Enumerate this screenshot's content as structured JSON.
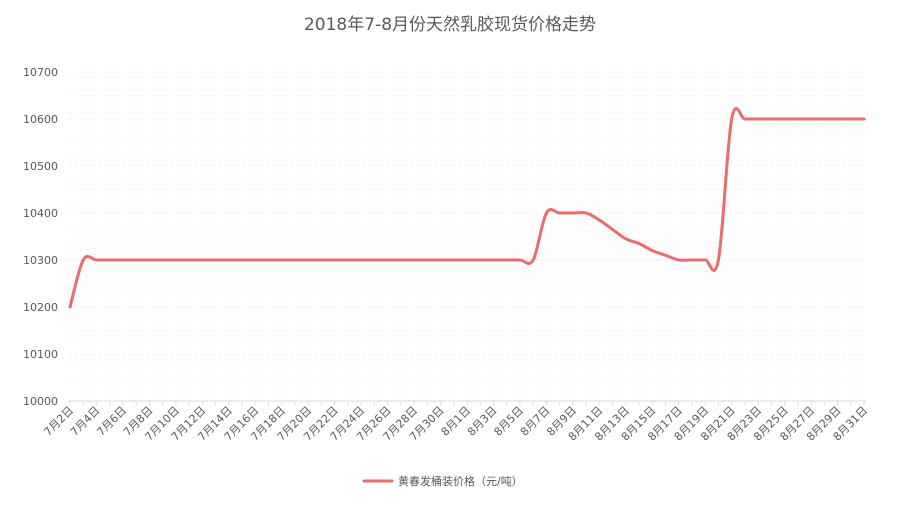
{
  "chart_data": {
    "type": "line",
    "title": "2018年7-8月份天然乳胶现货价格走势",
    "xlabel": "",
    "ylabel": "",
    "ylim": [
      10000,
      10700
    ],
    "yticks": [
      10000,
      10100,
      10200,
      10300,
      10400,
      10500,
      10600,
      10700
    ],
    "grid": "horizontal-dotted",
    "legend_position": "bottom",
    "categories": [
      "7月2日",
      "7月3日",
      "7月4日",
      "7月5日",
      "7月6日",
      "7月7日",
      "7月8日",
      "7月9日",
      "7月10日",
      "7月11日",
      "7月12日",
      "7月13日",
      "7月14日",
      "7月15日",
      "7月16日",
      "7月17日",
      "7月18日",
      "7月19日",
      "7月20日",
      "7月21日",
      "7月22日",
      "7月23日",
      "7月24日",
      "7月25日",
      "7月26日",
      "7月27日",
      "7月28日",
      "7月29日",
      "7月30日",
      "7月31日",
      "8月1日",
      "8月2日",
      "8月3日",
      "8月4日",
      "8月5日",
      "8月6日",
      "8月7日",
      "8月8日",
      "8月9日",
      "8月10日",
      "8月11日",
      "8月12日",
      "8月13日",
      "8月14日",
      "8月15日",
      "8月16日",
      "8月17日",
      "8月18日",
      "8月19日",
      "8月20日",
      "8月21日",
      "8月22日",
      "8月23日",
      "8月24日",
      "8月25日",
      "8月26日",
      "8月27日",
      "8月28日",
      "8月29日",
      "8月30日",
      "8月31日"
    ],
    "tick_labels": [
      "7月2日",
      "7月4日",
      "7月6日",
      "7月8日",
      "7月10日",
      "7月12日",
      "7月14日",
      "7月16日",
      "7月18日",
      "7月20日",
      "7月22日",
      "7月24日",
      "7月26日",
      "7月28日",
      "7月30日",
      "8月1日",
      "8月3日",
      "8月5日",
      "8月7日",
      "8月9日",
      "8月11日",
      "8月13日",
      "8月15日",
      "8月17日",
      "8月19日",
      "8月21日",
      "8月23日",
      "8月25日",
      "8月27日",
      "8月29日",
      "8月31日"
    ],
    "series": [
      {
        "name": "黄春发桶装价格（元/吨）",
        "color": "#ee6b6b",
        "values": [
          10200,
          10300,
          10300,
          10300,
          10300,
          10300,
          10300,
          10300,
          10300,
          10300,
          10300,
          10300,
          10300,
          10300,
          10300,
          10300,
          10300,
          10300,
          10300,
          10300,
          10300,
          10300,
          10300,
          10300,
          10300,
          10300,
          10300,
          10300,
          10300,
          10300,
          10300,
          10300,
          10300,
          10300,
          10300,
          10300,
          10400,
          10400,
          10400,
          10400,
          10385,
          10365,
          10345,
          10335,
          10320,
          10310,
          10300,
          10300,
          10300,
          10300,
          10600,
          10600,
          10600,
          10600,
          10600,
          10600,
          10600,
          10600,
          10600,
          10600,
          10600
        ]
      }
    ]
  }
}
